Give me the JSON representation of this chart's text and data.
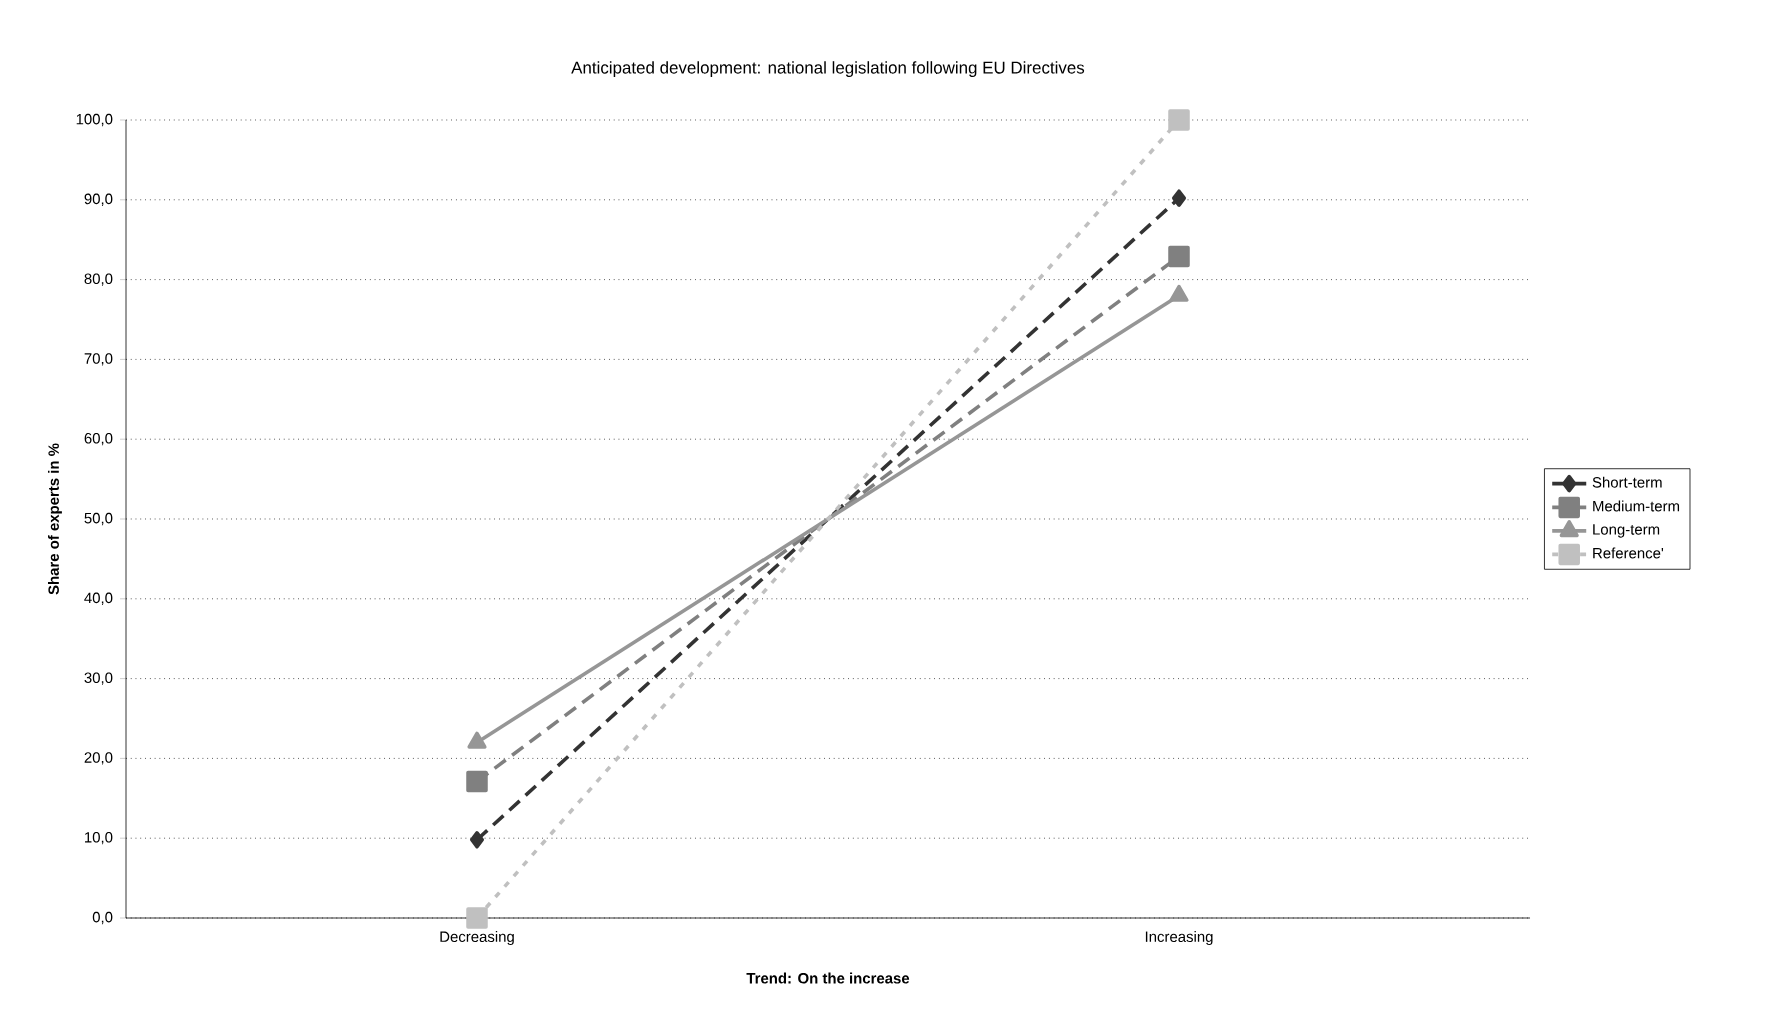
{
  "chart_data": {
    "type": "line",
    "title": "Anticipated development: national legislation following EU Directives",
    "xlabel": "Trend: On the increase",
    "ylabel": "Share of experts in %",
    "categories": [
      "Decreasing",
      "Increasing"
    ],
    "series": [
      {
        "name": "Short-term",
        "color": "#333333",
        "values": [
          9.8,
          90.2
        ],
        "marker": "diamond",
        "line_style": "dashed"
      },
      {
        "name": "Medium-term",
        "color": "#808080",
        "values": [
          17.1,
          82.9
        ],
        "marker": "square",
        "line_style": "dashed"
      },
      {
        "name": "Long-term",
        "color": "#969696",
        "values": [
          22.0,
          78.0
        ],
        "marker": "triangle",
        "line_style": "solid"
      },
      {
        "name": "Reference'",
        "color": "#c0c0c0",
        "values": [
          0.0,
          100.0
        ],
        "marker": "square",
        "line_style": "dotted"
      }
    ],
    "ylim": [
      0,
      100
    ],
    "yticks": [
      {
        "value": 0,
        "label": "0,0"
      },
      {
        "value": 10,
        "label": "10,0"
      },
      {
        "value": 20,
        "label": "20,0"
      },
      {
        "value": 30,
        "label": "30,0"
      },
      {
        "value": 40,
        "label": "40,0"
      },
      {
        "value": 50,
        "label": "50,0"
      },
      {
        "value": 60,
        "label": "60,0"
      },
      {
        "value": 70,
        "label": "70,0"
      },
      {
        "value": 80,
        "label": "80,0"
      },
      {
        "value": 90,
        "label": "90,0"
      },
      {
        "value": 100,
        "label": "100,0"
      }
    ],
    "grid": "y",
    "legend": "right"
  }
}
